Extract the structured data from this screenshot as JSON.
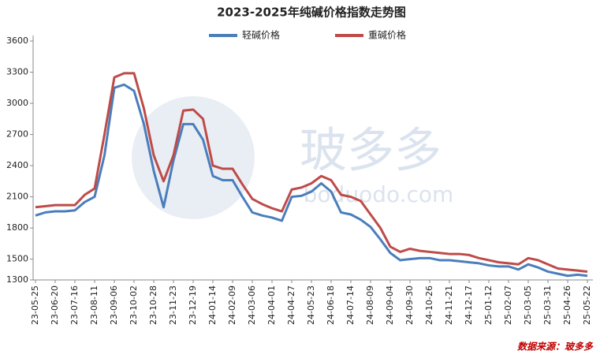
{
  "chart_data": {
    "type": "line",
    "title": "2023-2025年纯碱价格指数走势图",
    "source": "数据来源：玻多多",
    "watermark": [
      "玻多多",
      "boduodo.com"
    ],
    "categories": [
      "23-05-25",
      null,
      "23-06-20",
      null,
      "23-07-16",
      null,
      "23-08-11",
      null,
      "23-09-06",
      null,
      "23-10-02",
      null,
      "23-10-28",
      null,
      "23-11-23",
      null,
      "23-12-19",
      null,
      "24-01-14",
      null,
      "24-02-09",
      null,
      "24-03-06",
      null,
      "24-04-01",
      null,
      "24-04-27",
      null,
      "24-05-23",
      null,
      "24-06-18",
      null,
      "24-07-14",
      null,
      "24-08-09",
      null,
      "24-09-04",
      null,
      "24-09-30",
      null,
      "24-10-26",
      null,
      "24-11-21",
      null,
      "24-12-17",
      null,
      "25-01-12",
      null,
      "25-02-07",
      null,
      "25-03-05",
      null,
      "25-03-31",
      null,
      "25-04-26",
      null,
      "25-05-22"
    ],
    "series": [
      {
        "name": "轻碱价格",
        "color": "#4a7ebb",
        "values": [
          1920,
          1950,
          1960,
          1960,
          1970,
          2050,
          2100,
          2500,
          3150,
          3180,
          3120,
          2800,
          2350,
          2000,
          2450,
          2800,
          2800,
          2650,
          2300,
          2260,
          2260,
          2100,
          1950,
          1920,
          1900,
          1870,
          2100,
          2110,
          2150,
          2230,
          2150,
          1950,
          1930,
          1880,
          1810,
          1690,
          1560,
          1490,
          1500,
          1510,
          1510,
          1490,
          1490,
          1480,
          1470,
          1460,
          1440,
          1430,
          1430,
          1400,
          1450,
          1420,
          1380,
          1360,
          1340,
          1350,
          1340
        ]
      },
      {
        "name": "重碱价格",
        "color": "#be4b48",
        "values": [
          2000,
          2010,
          2020,
          2020,
          2020,
          2120,
          2180,
          2700,
          3250,
          3290,
          3290,
          2950,
          2500,
          2250,
          2500,
          2930,
          2940,
          2850,
          2400,
          2370,
          2370,
          2220,
          2080,
          2030,
          1990,
          1960,
          2170,
          2190,
          2230,
          2300,
          2260,
          2120,
          2100,
          2060,
          1930,
          1800,
          1620,
          1570,
          1600,
          1580,
          1570,
          1560,
          1550,
          1550,
          1540,
          1510,
          1490,
          1470,
          1460,
          1450,
          1510,
          1490,
          1450,
          1410,
          1400,
          1390,
          1380
        ]
      }
    ],
    "ylim": [
      1300,
      3600
    ],
    "yticks": [
      1300,
      1500,
      1800,
      2100,
      2400,
      2700,
      3000,
      3300,
      3600
    ],
    "grid": false
  }
}
